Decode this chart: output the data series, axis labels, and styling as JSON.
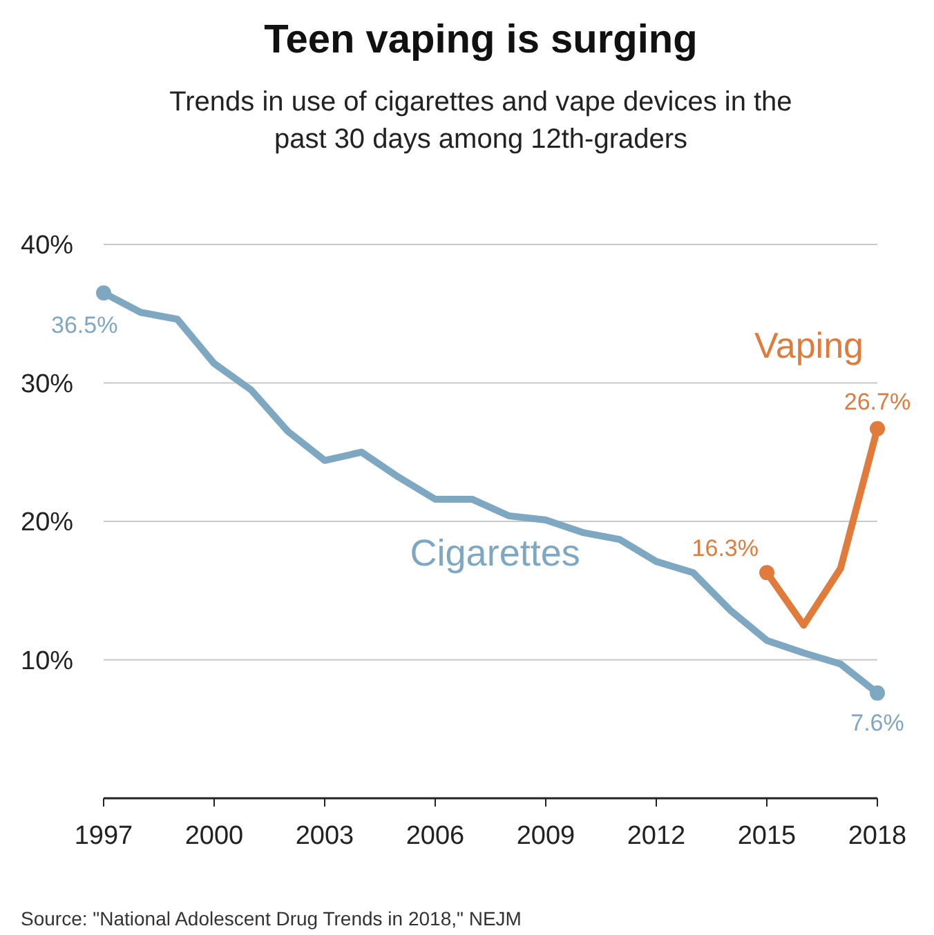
{
  "chart_data": {
    "type": "line",
    "title": "Teen vaping is surging",
    "subtitle": "Trends in use of cigarettes and vape devices in the past 30 days among 12th-graders",
    "x": [
      1997,
      1998,
      1999,
      2000,
      2001,
      2002,
      2003,
      2004,
      2005,
      2006,
      2007,
      2008,
      2009,
      2010,
      2011,
      2012,
      2013,
      2014,
      2015,
      2016,
      2017,
      2018
    ],
    "series": [
      {
        "name": "Cigarettes",
        "color": "#7ea7c2",
        "values": [
          36.5,
          35.1,
          34.6,
          31.4,
          29.5,
          26.5,
          24.4,
          25.0,
          23.2,
          21.6,
          21.6,
          20.4,
          20.1,
          19.2,
          18.7,
          17.1,
          16.3,
          13.6,
          11.4,
          10.5,
          9.7,
          7.6
        ],
        "value_labels": [
          "36.5%",
          null,
          null,
          null,
          null,
          null,
          null,
          null,
          null,
          null,
          null,
          null,
          null,
          null,
          null,
          null,
          null,
          null,
          null,
          null,
          null,
          "7.6%"
        ]
      },
      {
        "name": "Vaping",
        "color": "#e07b3c",
        "x": [
          2015,
          2016,
          2017,
          2018
        ],
        "values": [
          16.3,
          12.5,
          16.6,
          26.7
        ],
        "value_labels": [
          "16.3%",
          null,
          null,
          "26.7%"
        ]
      }
    ],
    "xlim": [
      1997,
      2018
    ],
    "xticks": [
      1997,
      2000,
      2003,
      2006,
      2009,
      2012,
      2015,
      2018
    ],
    "ylim": [
      0,
      40
    ],
    "yticks": [
      {
        "value": 10,
        "label": "10%"
      },
      {
        "value": 20,
        "label": "20%"
      },
      {
        "value": 30,
        "label": "30%"
      },
      {
        "value": 40,
        "label": "40%"
      }
    ],
    "grid": "y",
    "annotations": [
      "Source: \"National Adolescent Drug Trends in 2018,\" NEJM"
    ]
  }
}
